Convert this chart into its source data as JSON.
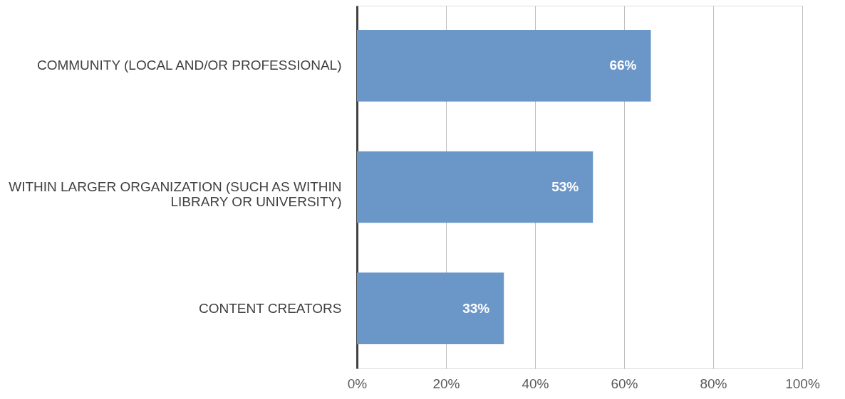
{
  "chart_data": {
    "type": "bar",
    "orientation": "horizontal",
    "categories": [
      "COMMUNITY (LOCAL AND/OR PROFESSIONAL)",
      "WITHIN LARGER ORGANIZATION (SUCH AS WITHIN LIBRARY OR UNIVERSITY)",
      "CONTENT CREATORS"
    ],
    "values": [
      66,
      53,
      33
    ],
    "value_labels": [
      "66%",
      "53%",
      "33%"
    ],
    "color": "#6a96c8",
    "xlim": [
      0,
      100
    ],
    "xticks": [
      {
        "value": 0,
        "label": "0%"
      },
      {
        "value": 20,
        "label": "20%"
      },
      {
        "value": 40,
        "label": "40%"
      },
      {
        "value": 60,
        "label": "60%"
      },
      {
        "value": 80,
        "label": "80%"
      },
      {
        "value": 100,
        "label": "100%"
      }
    ],
    "grid": "x"
  }
}
